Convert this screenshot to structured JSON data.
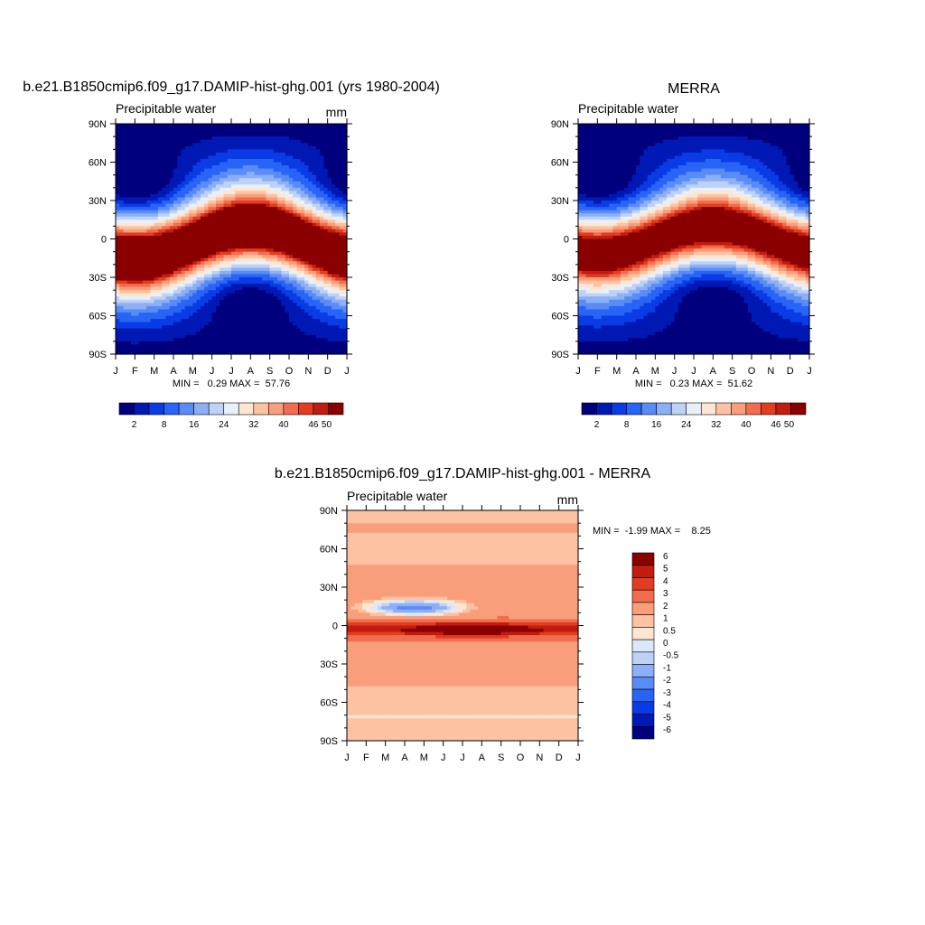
{
  "palette": {
    "seq": [
      "#00007f",
      "#0019b4",
      "#0a3ce6",
      "#2864f5",
      "#5a8cf5",
      "#8caff5",
      "#bed2f5",
      "#e8f0fa",
      "#fde6d2",
      "#fcc2a2",
      "#f99e7a",
      "#f26d4e",
      "#e23c22",
      "#c01c0f",
      "#8a0000"
    ],
    "diff": [
      "#00007f",
      "#0019b4",
      "#0a3ce6",
      "#2864f5",
      "#5a8cf5",
      "#8caff5",
      "#bed2f5",
      "#dce8fa",
      "#fde6d2",
      "#fcc2a2",
      "#f99e7a",
      "#f26d4e",
      "#e23c22",
      "#c01c0f",
      "#8a0000"
    ]
  },
  "panels": {
    "model": {
      "title": "b.e21.B1850cmip6.f09_g17.DAMIP-hist-ghg.001 (yrs 1980-2004)",
      "left_label": "Precipitable water",
      "right_label": "mm",
      "stats": "MIN =   0.29 MAX =  57.76"
    },
    "obs": {
      "title": "MERRA",
      "left_label": "Precipitable water",
      "stats": "MIN =   0.23 MAX =  51.62"
    },
    "diff": {
      "title": "b.e21.B1850cmip6.f09_g17.DAMIP-hist-ghg.001 - MERRA",
      "left_label": "Precipitable water",
      "right_label": "mm",
      "stats": "MIN =  -1.99 MAX =    8.25"
    }
  },
  "chart_data": [
    {
      "type": "heatmap",
      "title": "b.e21.B1850cmip6.f09_g17.DAMIP-hist-ghg.001 (yrs 1980-2004)",
      "subtitle": "Precipitable water",
      "units": "mm",
      "x_ticks": [
        "J",
        "F",
        "M",
        "A",
        "M",
        "J",
        "J",
        "A",
        "S",
        "O",
        "N",
        "D",
        "J"
      ],
      "y_ticks": [
        "90N",
        "60N",
        "30N",
        "0",
        "30S",
        "60S",
        "90S"
      ],
      "xlim": [
        0,
        12
      ],
      "ylim": [
        -90,
        90
      ],
      "colorbar_labels": [
        "2",
        "8",
        "16",
        "24",
        "32",
        "40",
        "46",
        "50"
      ],
      "min": 0.29,
      "max": 57.76,
      "field": {
        "peak": 56,
        "floor": 1.5,
        "lat0": -3,
        "lat_amp": 10,
        "width": 20,
        "nh_amp": 9,
        "sh_amp": 8
      }
    },
    {
      "type": "heatmap",
      "title": "MERRA",
      "subtitle": "Precipitable water",
      "x_ticks": [
        "J",
        "F",
        "M",
        "A",
        "M",
        "J",
        "J",
        "A",
        "S",
        "O",
        "N",
        "D",
        "J"
      ],
      "y_ticks": [
        "90N",
        "60N",
        "30N",
        "0",
        "30S",
        "60S",
        "90S"
      ],
      "xlim": [
        0,
        12
      ],
      "ylim": [
        -90,
        90
      ],
      "colorbar_labels": [
        "2",
        "8",
        "16",
        "24",
        "32",
        "40",
        "46",
        "50"
      ],
      "min": 0.23,
      "max": 51.62,
      "field": {
        "peak": 50,
        "floor": 1.0,
        "lat0": -1,
        "lat_amp": 9,
        "width": 19,
        "nh_amp": 8,
        "sh_amp": 7
      }
    },
    {
      "type": "heatmap",
      "title": "b.e21.B1850cmip6.f09_g17.DAMIP-hist-ghg.001 - MERRA",
      "subtitle": "Precipitable water",
      "units": "mm",
      "x_ticks": [
        "J",
        "F",
        "M",
        "A",
        "M",
        "J",
        "J",
        "A",
        "S",
        "O",
        "N",
        "D",
        "J"
      ],
      "y_ticks": [
        "90N",
        "60N",
        "30N",
        "0",
        "30S",
        "60S",
        "90S"
      ],
      "xlim": [
        0,
        12
      ],
      "ylim": [
        -90,
        90
      ],
      "colorbar_labels": [
        "6",
        "5",
        "4",
        "3",
        "2",
        "1",
        "0.5",
        "0",
        "-0.5",
        "-1",
        "-2",
        "-3",
        "-4",
        "-5",
        "-6"
      ],
      "min": -1.99,
      "max": 8.25
    }
  ]
}
